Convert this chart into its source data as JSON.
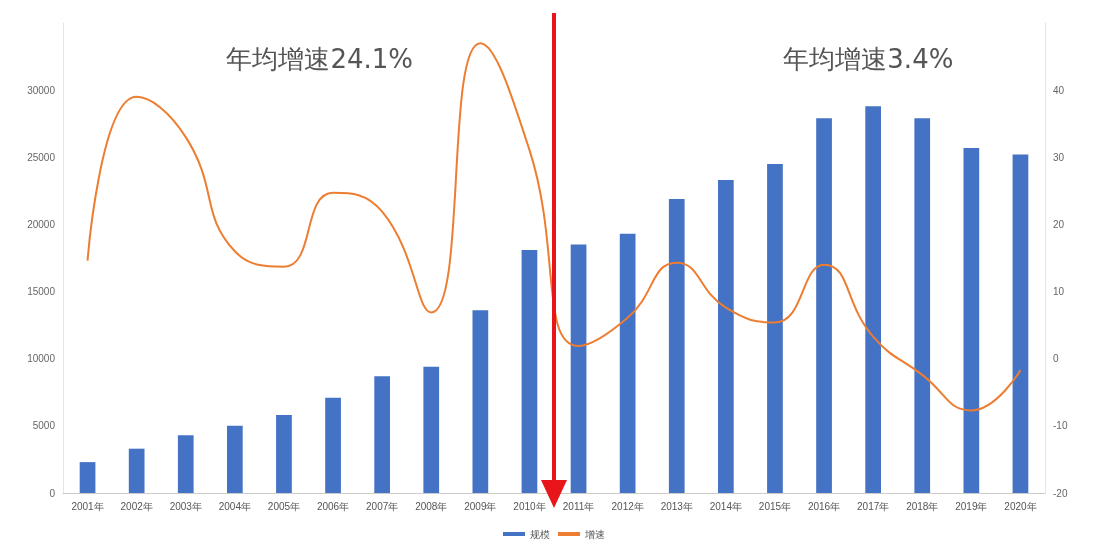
{
  "chart_data": {
    "type": "bar",
    "categories": [
      "2001年",
      "2002年",
      "2003年",
      "2004年",
      "2005年",
      "2006年",
      "2007年",
      "2008年",
      "2009年",
      "2010年",
      "2011年",
      "2012年",
      "2013年",
      "2014年",
      "2015年",
      "2016年",
      "2017年",
      "2018年",
      "2019年",
      "2020年"
    ],
    "series": [
      {
        "name": "规模",
        "color": "#4472c4",
        "values": [
          2300,
          3300,
          4300,
          5000,
          5800,
          7100,
          8700,
          9400,
          13600,
          18100,
          18500,
          19300,
          21900,
          23300,
          24500,
          27900,
          28800,
          27900,
          25700,
          25200
        ]
      },
      {
        "name": "增速",
        "type": "line",
        "axis": "y2",
        "color": "#ed7d31",
        "values": [
          14.6,
          39,
          33,
          16,
          13.7,
          24.7,
          21.9,
          6.9,
          47,
          31.1,
          1.9,
          6.1,
          14.3,
          7.6,
          5.4,
          14,
          3.3,
          -2.4,
          -7.7,
          -1.7
        ]
      }
    ],
    "ylim": [
      0,
      35000
    ],
    "yticks": [
      0,
      5000,
      10000,
      15000,
      20000,
      25000,
      30000
    ],
    "y2lim": [
      -20,
      50
    ],
    "y2ticks": [
      -20,
      -10,
      0,
      10,
      20,
      30,
      40
    ],
    "annotations": [
      "年均增速24.1%",
      "年均增速3.4%"
    ],
    "grid": false,
    "legend": "bottom",
    "marker": "none",
    "line_style": "solid"
  }
}
